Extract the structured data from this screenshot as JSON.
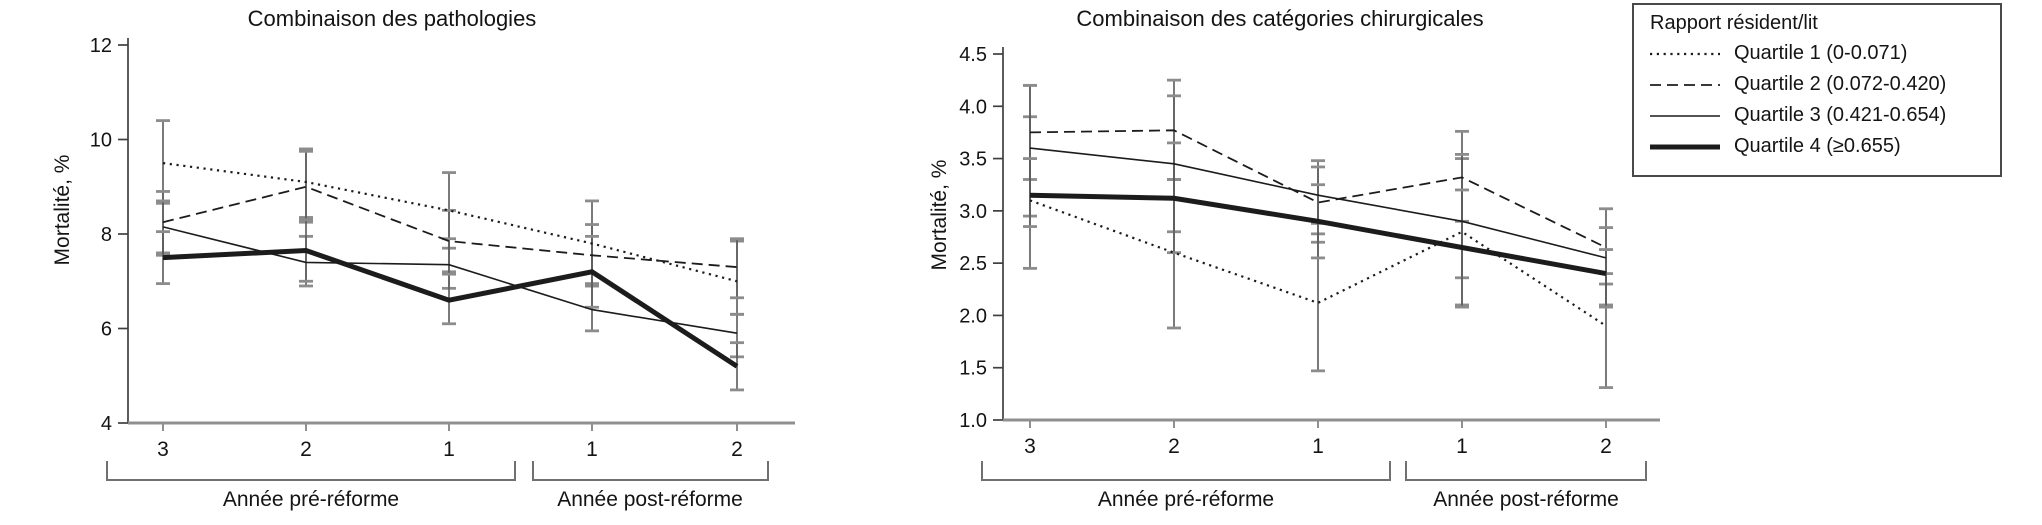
{
  "figure": {
    "background": "#ffffff",
    "ink_color": "#1c1c1c",
    "axis_color": "#3f3f3f",
    "baseline_color": "#8f8f8f",
    "whisker_color": "#5a5a5a",
    "cap_color": "#8c8c8c",
    "bracket_color": "#707070"
  },
  "legend": {
    "title": "Rapport résident/lit",
    "items": [
      {
        "label": "Quartile 1 (0-0.071)",
        "style": "dotted"
      },
      {
        "label": "Quartile 2 (0.072-0.420)",
        "style": "dashed"
      },
      {
        "label": "Quartile 3 (0.421-0.654)",
        "style": "solid-thin"
      },
      {
        "label": "Quartile 4 (≥0.655)",
        "style": "solid-thick"
      }
    ]
  },
  "chart_data": [
    {
      "type": "line",
      "title": "Combinaison des pathologies",
      "ylabel": "Mortalité, %",
      "ylim": [
        4,
        12
      ],
      "ytick_values": [
        4,
        6,
        8,
        10,
        12
      ],
      "ytick_labels": [
        "4",
        "6",
        "8",
        "10",
        "12"
      ],
      "categories": [
        "3",
        "2",
        "1",
        "1",
        "2"
      ],
      "group_labels": [
        "Année pré-réforme",
        "Année post-réforme"
      ],
      "grid": "off",
      "error_bars": true,
      "series": [
        {
          "name": "Quartile 1 (0-0.071)",
          "style": "dotted",
          "values": [
            9.5,
            9.1,
            8.5,
            7.8,
            7.0
          ],
          "err_high": [
            10.4,
            9.8,
            9.3,
            8.7,
            7.85
          ],
          "err_low": [
            8.65,
            8.35,
            7.7,
            6.9,
            6.3
          ]
        },
        {
          "name": "Quartile 2 (0.072-0.420)",
          "style": "dashed",
          "values": [
            8.25,
            9.0,
            7.85,
            7.55,
            7.3
          ],
          "err_high": [
            8.9,
            9.75,
            8.5,
            8.2,
            7.9
          ],
          "err_low": [
            7.6,
            8.25,
            7.2,
            6.9,
            6.65
          ]
        },
        {
          "name": "Quartile 3 (0.421-0.654)",
          "style": "solid-thin",
          "values": [
            8.15,
            7.4,
            7.35,
            6.4,
            5.9
          ],
          "err_high": [
            8.7,
            7.95,
            7.9,
            6.95,
            6.3
          ],
          "err_low": [
            7.55,
            6.9,
            6.85,
            5.95,
            5.4
          ]
        },
        {
          "name": "Quartile 4 (≥0.655)",
          "style": "solid-thick",
          "values": [
            7.5,
            7.65,
            6.6,
            7.2,
            5.2
          ],
          "err_high": [
            8.05,
            8.3,
            7.15,
            7.95,
            5.7
          ],
          "err_low": [
            6.95,
            7.0,
            6.1,
            6.45,
            4.7
          ]
        }
      ]
    },
    {
      "type": "line",
      "title": "Combinaison des catégories chirurgicales",
      "ylabel": "Mortalité, %",
      "ylim": [
        1.0,
        4.5
      ],
      "ytick_values": [
        1.0,
        1.5,
        2.0,
        2.5,
        3.0,
        3.5,
        4.0,
        4.5
      ],
      "ytick_labels": [
        "1.0",
        "1.5",
        "2.0",
        "2.5",
        "3.0",
        "3.5",
        "4.0",
        "4.5"
      ],
      "categories": [
        "3",
        "2",
        "1",
        "1",
        "2"
      ],
      "group_labels": [
        "Année pré-réforme",
        "Année post-réforme"
      ],
      "grid": "off",
      "error_bars": true,
      "series": [
        {
          "name": "Quartile 1 (0-0.071)",
          "style": "dotted",
          "values": [
            3.1,
            2.6,
            2.12,
            2.8,
            1.9
          ],
          "err_high": [
            3.9,
            3.3,
            2.78,
            3.5,
            2.4
          ],
          "err_low": [
            2.45,
            1.88,
            1.47,
            2.1,
            1.31
          ]
        },
        {
          "name": "Quartile 2 (0.072-0.420)",
          "style": "dashed",
          "values": [
            3.75,
            3.77,
            3.08,
            3.32,
            2.65
          ],
          "err_high": [
            4.2,
            4.25,
            3.48,
            3.76,
            3.02
          ],
          "err_low": [
            3.3,
            3.3,
            2.7,
            2.9,
            2.3
          ]
        },
        {
          "name": "Quartile 3 (0.421-0.654)",
          "style": "solid-thin",
          "values": [
            3.6,
            3.45,
            3.15,
            2.9,
            2.55
          ],
          "err_high": [
            4.2,
            4.1,
            3.42,
            3.54,
            2.84
          ],
          "err_low": [
            2.95,
            2.8,
            2.88,
            2.36,
            2.1
          ]
        },
        {
          "name": "Quartile 4 (≥0.655)",
          "style": "solid-thick",
          "values": [
            3.15,
            3.12,
            2.9,
            2.65,
            2.4
          ],
          "err_high": [
            3.5,
            3.65,
            3.25,
            3.2,
            2.63
          ],
          "err_low": [
            2.85,
            2.6,
            2.55,
            2.08,
            2.08
          ]
        }
      ]
    }
  ]
}
